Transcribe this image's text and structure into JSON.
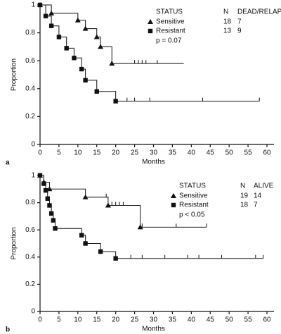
{
  "chart_data": [
    {
      "type": "step",
      "label": "a",
      "x_label": "Months",
      "y_label": "Proportion",
      "xlim": [
        0,
        60
      ],
      "xticks": [
        0,
        5,
        10,
        15,
        20,
        25,
        30,
        35,
        40,
        45,
        50,
        55,
        60
      ],
      "ylim": [
        0,
        1
      ],
      "yticks": [
        0,
        0.2,
        0.4,
        0.6,
        0.8,
        1
      ],
      "series": [
        {
          "name": "Sensitive",
          "marker": "triangle",
          "color": "#111",
          "x": [
            0,
            3,
            10,
            12,
            15,
            16,
            19,
            38
          ],
          "values": [
            1,
            0.94,
            0.89,
            0.83,
            0.77,
            0.7,
            0.58,
            0.58
          ],
          "censored": [
            25,
            26,
            27,
            28,
            31
          ]
        },
        {
          "name": "Resistant",
          "marker": "square",
          "color": "#111",
          "x": [
            0,
            1.5,
            3,
            5,
            7,
            9,
            11,
            12,
            15,
            20,
            58
          ],
          "values": [
            1,
            0.92,
            0.85,
            0.77,
            0.69,
            0.62,
            0.54,
            0.46,
            0.38,
            0.31,
            0.31
          ],
          "censored": [
            23,
            25,
            29,
            43,
            58
          ]
        }
      ],
      "legend_table": {
        "headers": [
          "STATUS",
          "N",
          "DEAD/RELAPSED"
        ],
        "rows": [
          [
            18,
            7
          ],
          [
            13,
            9
          ]
        ],
        "note": "p = 0.07"
      }
    },
    {
      "type": "step",
      "label": "b",
      "x_label": "Months",
      "y_label": "Proportion",
      "xlim": [
        0,
        60
      ],
      "xticks": [
        0,
        5,
        10,
        15,
        20,
        25,
        30,
        35,
        40,
        45,
        50,
        55,
        60
      ],
      "ylim": [
        0,
        1
      ],
      "yticks": [
        0,
        0.2,
        0.4,
        0.6,
        0.8,
        1
      ],
      "series": [
        {
          "name": "Sensitive",
          "marker": "triangle",
          "color": "#111",
          "x": [
            0,
            1,
            2.5,
            12,
            18,
            26.5,
            44
          ],
          "values": [
            1,
            0.95,
            0.9,
            0.84,
            0.78,
            0.62,
            0.62
          ],
          "censored": [
            17.5,
            19,
            20,
            21,
            22,
            27,
            36,
            44
          ]
        },
        {
          "name": "Resistant",
          "marker": "square",
          "color": "#111",
          "x": [
            0,
            1,
            1.5,
            2,
            2.5,
            3,
            3.5,
            4,
            11,
            12,
            16,
            20,
            59
          ],
          "values": [
            1,
            0.94,
            0.89,
            0.83,
            0.78,
            0.72,
            0.67,
            0.61,
            0.56,
            0.5,
            0.44,
            0.39,
            0.39
          ],
          "censored": [
            24,
            27,
            33,
            39,
            42,
            48,
            57,
            59
          ]
        }
      ],
      "legend_table": {
        "headers": [
          "STATUS",
          "N",
          "ALIVE"
        ],
        "rows": [
          [
            19,
            14
          ],
          [
            18,
            7
          ]
        ],
        "note": "p < 0.05"
      }
    }
  ]
}
